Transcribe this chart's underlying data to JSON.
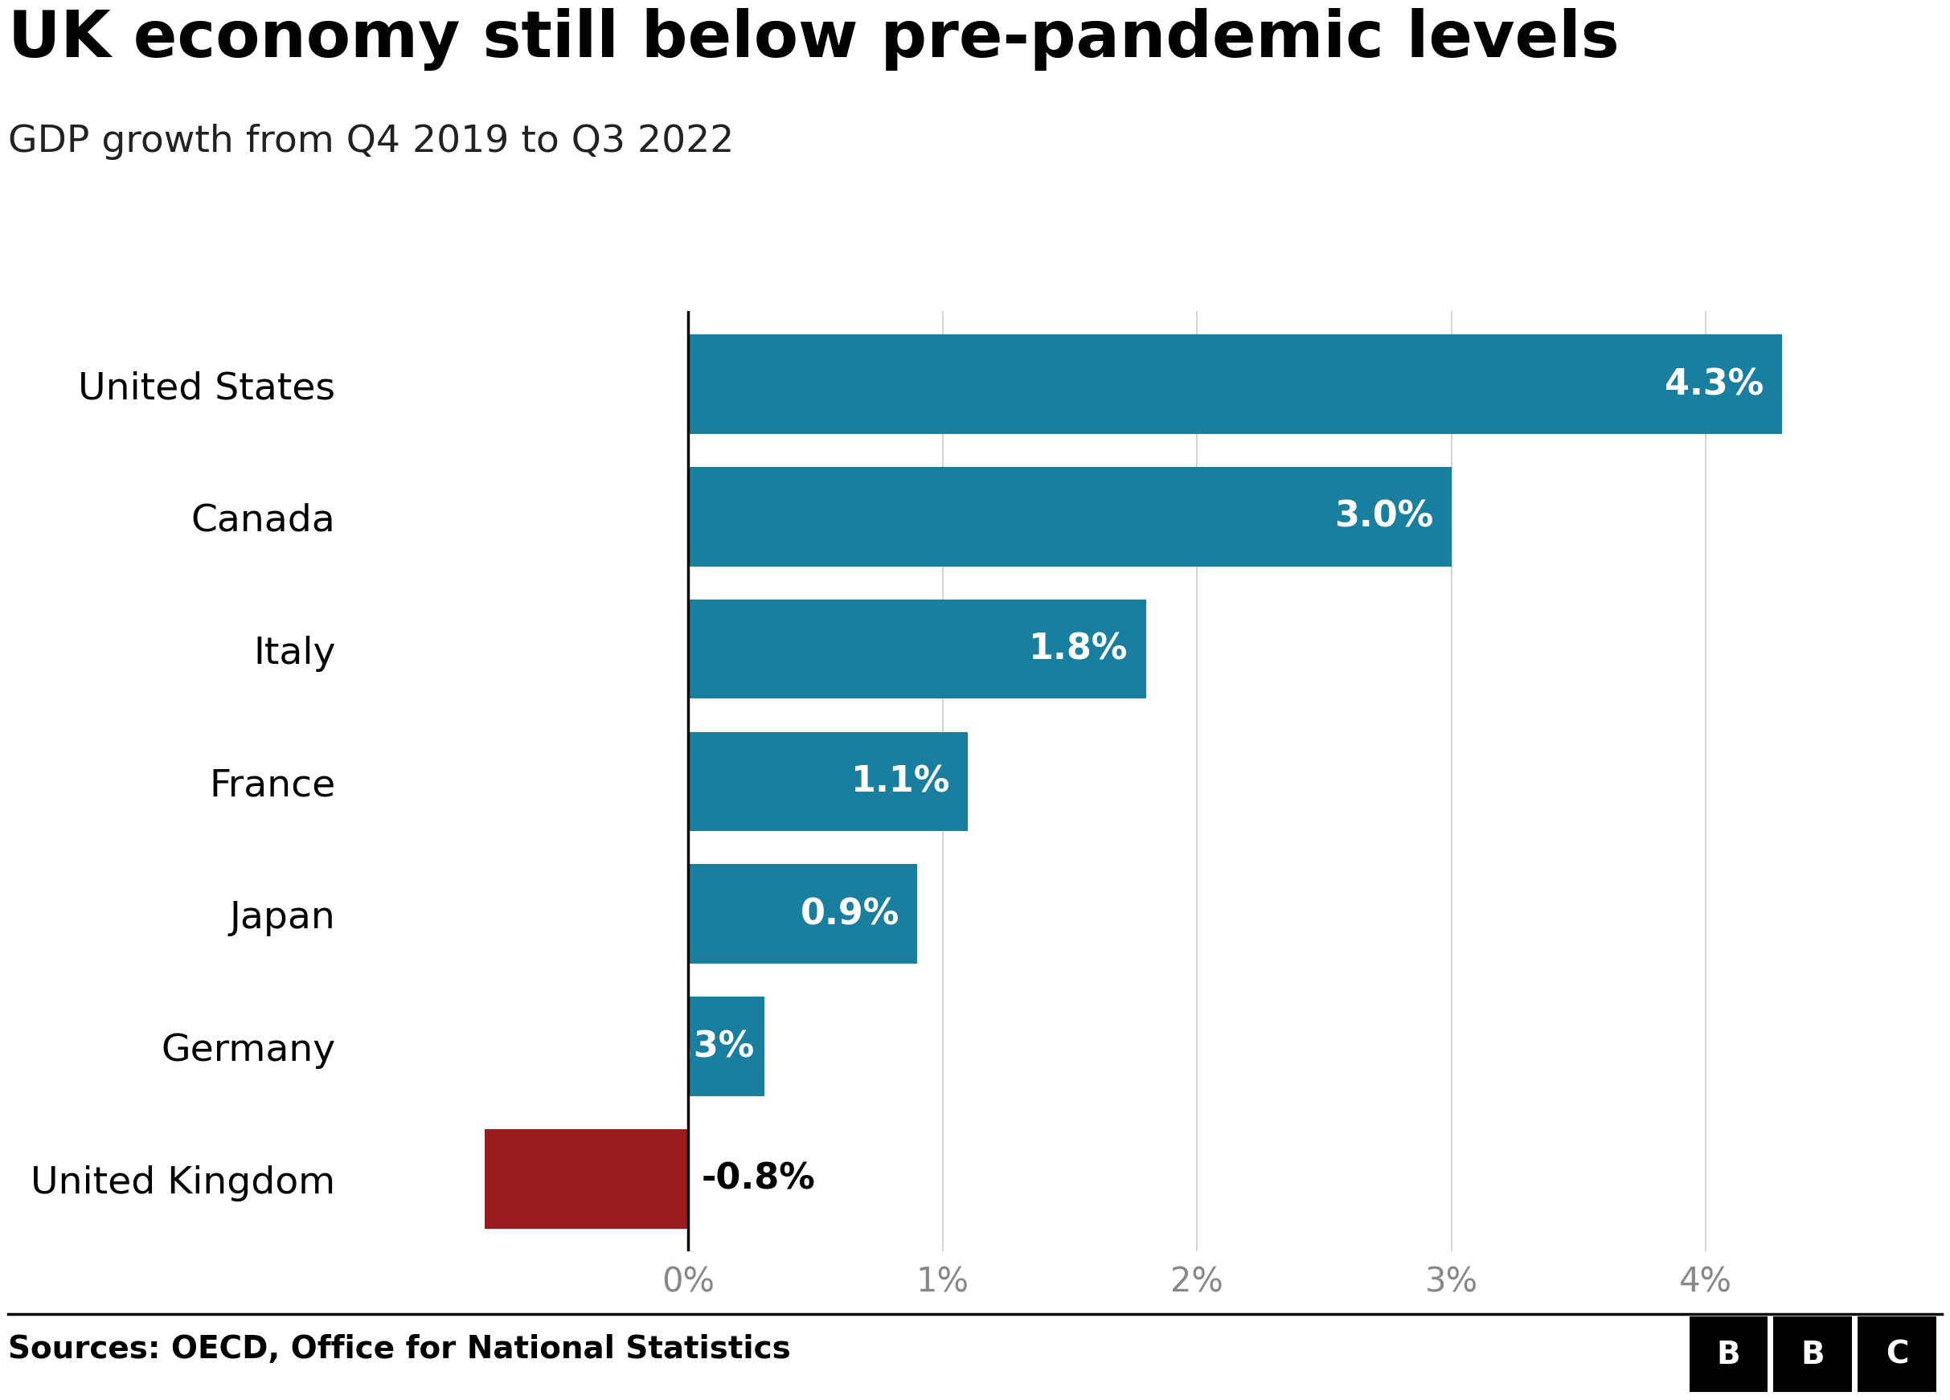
{
  "title": "UK economy still below pre-pandemic levels",
  "subtitle": "GDP growth from Q4 2019 to Q3 2022",
  "source": "Sources: OECD, Office for National Statistics",
  "countries": [
    "United States",
    "Canada",
    "Italy",
    "France",
    "Japan",
    "Germany",
    "United Kingdom"
  ],
  "values": [
    4.3,
    3.0,
    1.8,
    1.1,
    0.9,
    0.3,
    -0.8
  ],
  "labels": [
    "4.3%",
    "3.0%",
    "1.8%",
    "1.1%",
    "0.9%",
    "0.3%",
    "-0.8%"
  ],
  "bar_color_positive": "#1a7e9e",
  "bar_color_negative": "#9b1c1c",
  "background_color": "#ffffff",
  "title_fontsize": 58,
  "subtitle_fontsize": 34,
  "label_fontsize": 32,
  "ytick_fontsize": 34,
  "xtick_fontsize": 30,
  "source_fontsize": 28,
  "xlim": [
    -1.3,
    4.85
  ],
  "xticks": [
    0,
    1,
    2,
    3,
    4
  ],
  "xticklabels": [
    "0%",
    "1%",
    "2%",
    "3%",
    "4%"
  ],
  "grid_color": "#cccccc",
  "bar_height": 0.75
}
